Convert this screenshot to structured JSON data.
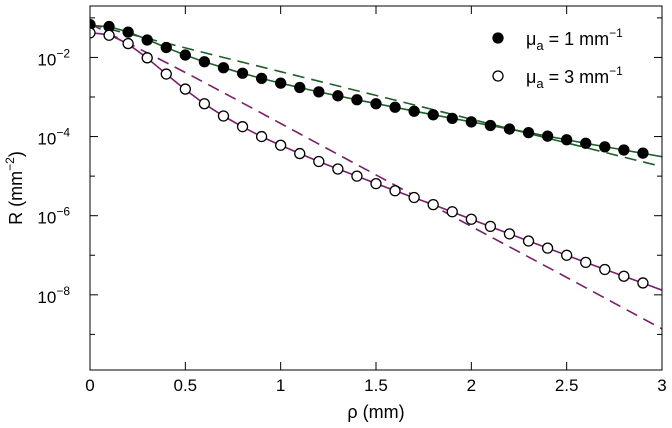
{
  "chart_data": {
    "type": "scatter",
    "title": "",
    "xlabel": "ρ (mm)",
    "ylabel_base": "R (mm",
    "ylabel_exp": "−2",
    "ylabel_tail": ")",
    "xlim": [
      0,
      3
    ],
    "ylim_log10": [
      -9.9,
      -0.7
    ],
    "y_scale": "log",
    "grid": false,
    "legend_position": "top-right",
    "x_ticks": [
      {
        "value": 0,
        "label": "0"
      },
      {
        "value": 0.5,
        "label": "0.5"
      },
      {
        "value": 1,
        "label": "1"
      },
      {
        "value": 1.5,
        "label": "1.5"
      },
      {
        "value": 2,
        "label": "2"
      },
      {
        "value": 2.5,
        "label": "2.5"
      },
      {
        "value": 3,
        "label": "3"
      }
    ],
    "y_ticks": [
      {
        "exp": -2,
        "label_base": "10",
        "label_exp": "−2"
      },
      {
        "exp": -4,
        "label_base": "10",
        "label_exp": "−4"
      },
      {
        "exp": -6,
        "label_base": "10",
        "label_exp": "−6"
      },
      {
        "exp": -8,
        "label_base": "10",
        "label_exp": "−8"
      }
    ],
    "series": [
      {
        "name_symbol": "μ",
        "name_sub": "a",
        "name_mid": " = 1 mm",
        "name_exp": "−1",
        "marker": "filled-circle",
        "fit_color": "#1f5f2a",
        "dashed_color": "#1f5f2a",
        "x": [
          0,
          0.1,
          0.2,
          0.3,
          0.4,
          0.5,
          0.6,
          0.7,
          0.8,
          0.9,
          1.0,
          1.1,
          1.2,
          1.3,
          1.4,
          1.5,
          1.6,
          1.7,
          1.8,
          1.9,
          2.0,
          2.1,
          2.2,
          2.3,
          2.4,
          2.5,
          2.6,
          2.7,
          2.8,
          2.9
        ],
        "y_log10": [
          -1.17,
          -1.22,
          -1.36,
          -1.56,
          -1.75,
          -1.94,
          -2.11,
          -2.26,
          -2.4,
          -2.53,
          -2.65,
          -2.76,
          -2.87,
          -2.97,
          -3.07,
          -3.17,
          -3.26,
          -3.36,
          -3.45,
          -3.54,
          -3.63,
          -3.72,
          -3.81,
          -3.9,
          -3.99,
          -4.08,
          -4.17,
          -4.26,
          -4.34,
          -4.42
        ],
        "fit_x": [
          0,
          0.1,
          0.2,
          0.3,
          0.4,
          0.5,
          0.6,
          0.7,
          0.8,
          0.9,
          1.0,
          1.2,
          1.4,
          1.6,
          1.8,
          2.0,
          2.2,
          2.4,
          2.6,
          2.8,
          3.0
        ],
        "fit_y_log10": [
          -1.19,
          -1.23,
          -1.36,
          -1.55,
          -1.75,
          -1.94,
          -2.11,
          -2.26,
          -2.4,
          -2.53,
          -2.65,
          -2.87,
          -3.07,
          -3.26,
          -3.45,
          -3.63,
          -3.81,
          -3.99,
          -4.17,
          -4.34,
          -4.51
        ],
        "dashed_x": [
          0,
          0.5,
          1.0,
          1.5,
          2.0,
          2.5,
          3.0
        ],
        "dashed_y_log10": [
          -1.16,
          -1.76,
          -2.36,
          -2.96,
          -3.56,
          -4.16,
          -4.76
        ]
      },
      {
        "name_symbol": "μ",
        "name_sub": "a",
        "name_mid": " = 3 mm",
        "name_exp": "−1",
        "marker": "open-circle",
        "fit_color": "#7a1f6a",
        "dashed_color": "#7a1f6a",
        "x": [
          0,
          0.1,
          0.2,
          0.3,
          0.4,
          0.5,
          0.6,
          0.7,
          0.8,
          0.9,
          1.0,
          1.1,
          1.2,
          1.3,
          1.4,
          1.5,
          1.6,
          1.7,
          1.8,
          1.9,
          2.0,
          2.1,
          2.2,
          2.3,
          2.4,
          2.5,
          2.6,
          2.7,
          2.8,
          2.9
        ],
        "y_log10": [
          -1.38,
          -1.44,
          -1.65,
          -2.01,
          -2.42,
          -2.8,
          -3.17,
          -3.48,
          -3.75,
          -4.0,
          -4.22,
          -4.43,
          -4.63,
          -4.82,
          -5.0,
          -5.19,
          -5.37,
          -5.54,
          -5.72,
          -5.9,
          -6.09,
          -6.27,
          -6.46,
          -6.64,
          -6.82,
          -7.0,
          -7.18,
          -7.36,
          -7.53,
          -7.7
        ],
        "fit_x": [
          0,
          0.1,
          0.2,
          0.3,
          0.4,
          0.5,
          0.6,
          0.7,
          0.8,
          0.9,
          1.0,
          1.2,
          1.4,
          1.6,
          1.8,
          2.0,
          2.2,
          2.4,
          2.6,
          2.8,
          3.0
        ],
        "fit_y_log10": [
          -1.38,
          -1.44,
          -1.67,
          -2.02,
          -2.42,
          -2.81,
          -3.17,
          -3.48,
          -3.75,
          -4.0,
          -4.22,
          -4.63,
          -5.0,
          -5.37,
          -5.72,
          -6.09,
          -6.46,
          -6.82,
          -7.18,
          -7.53,
          -7.88
        ],
        "dashed_x": [
          0,
          0.5,
          1.0,
          1.5,
          2.0,
          2.5,
          3.0
        ],
        "dashed_y_log10": [
          -1.15,
          -2.38,
          -3.67,
          -4.97,
          -6.27,
          -7.56,
          -8.86
        ]
      }
    ]
  }
}
